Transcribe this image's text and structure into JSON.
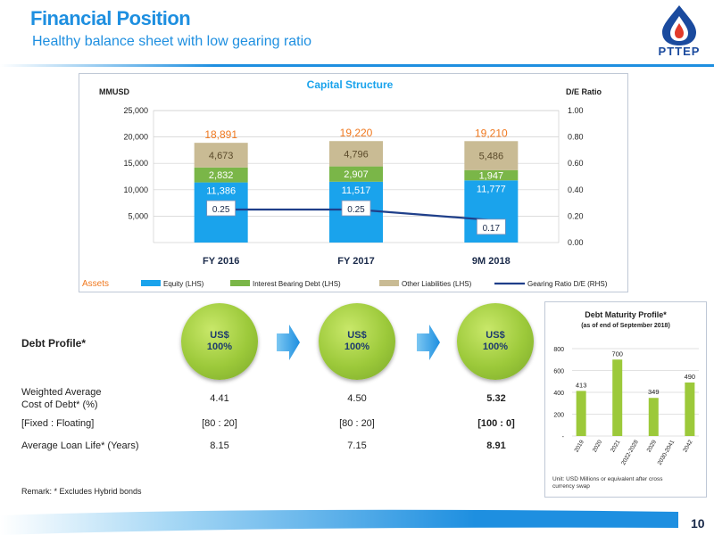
{
  "header": {
    "title": "Financial Position",
    "subtitle": "Healthy balance sheet with low gearing ratio",
    "logo_text": "PTTEP"
  },
  "colors": {
    "equity": "#1aa3ec",
    "interest_debt": "#7ab648",
    "other_liab": "#c9bb94",
    "gearing": "#1f3f8a",
    "total_label": "#f0781e",
    "maturity_bar": "#9cc93a"
  },
  "chart_data": [
    {
      "type": "bar",
      "title": "Capital Structure",
      "ylabel_left": "MMUSD",
      "ylabel_right": "D/E Ratio",
      "categories": [
        "FY 2016",
        "FY 2017",
        "9M 2018"
      ],
      "stacked": true,
      "series": [
        {
          "name": "Equity (LHS)",
          "values": [
            11386,
            11517,
            11777
          ],
          "labels": [
            "11,386",
            "11,517",
            "11,777"
          ]
        },
        {
          "name": "Interest Bearing Debt (LHS)",
          "values": [
            2832,
            2907,
            1947
          ],
          "labels": [
            "2,832",
            "2,907",
            "1,947"
          ]
        },
        {
          "name": "Other Liabilities (LHS)",
          "values": [
            4673,
            4796,
            5486
          ],
          "labels": [
            "4,673",
            "4,796",
            "5,486"
          ]
        }
      ],
      "totals": [
        "18,891",
        "19,220",
        "19,210"
      ],
      "line_series": {
        "name": "Gearing Ratio D/E (RHS)",
        "values": [
          0.25,
          0.25,
          0.17
        ],
        "labels": [
          "0.25",
          "0.25",
          "0.17"
        ]
      },
      "ylim": [
        0,
        25000
      ],
      "ylim_right": [
        0,
        1.0
      ],
      "yticks": [
        "5,000",
        "10,000",
        "15,000",
        "20,000",
        "25,000"
      ],
      "yticks_right": [
        "0.00",
        "0.20",
        "0.40",
        "0.60",
        "0.80",
        "1.00"
      ],
      "legend_prefix": "Assets",
      "legend_position": "bottom",
      "grid": true
    },
    {
      "type": "bar",
      "title": "Debt Maturity Profile*",
      "subtitle": "(as of end of September 2018)",
      "categories": [
        "2019",
        "2020",
        "2021",
        "2022-2028",
        "2029",
        "2030-2041",
        "2042"
      ],
      "values": [
        413,
        0,
        700,
        0,
        349,
        0,
        490
      ],
      "value_labels": [
        "413",
        "",
        "700",
        "",
        "349",
        "",
        "490"
      ],
      "ylim": [
        0,
        800
      ],
      "yticks": [
        "-",
        "200",
        "400",
        "600",
        "800"
      ],
      "note": "Unit: USD Millions or equivalent after cross currency swap",
      "grid": true
    }
  ],
  "debt_profile": {
    "heading": "Debt Profile*",
    "circles": [
      {
        "line1": "US$",
        "line2": "100%"
      },
      {
        "line1": "US$",
        "line2": "100%"
      },
      {
        "line1": "US$",
        "line2": "100%"
      }
    ],
    "rows": [
      {
        "label_1": "Weighted Average",
        "label_2": "Cost of Debt* (%)",
        "values": [
          "4.41",
          "4.50",
          "5.32"
        ]
      },
      {
        "label_1": "[Fixed : Floating]",
        "label_2": "",
        "values": [
          "[80 : 20]",
          "[80 : 20]",
          "[100 : 0]"
        ]
      },
      {
        "label_1": "Average Loan Life* (Years)",
        "label_2": "",
        "values": [
          "8.15",
          "7.15",
          "8.91"
        ]
      }
    ]
  },
  "footer": {
    "remark": "Remark:   *   Excludes Hybrid bonds",
    "page_number": "10"
  }
}
